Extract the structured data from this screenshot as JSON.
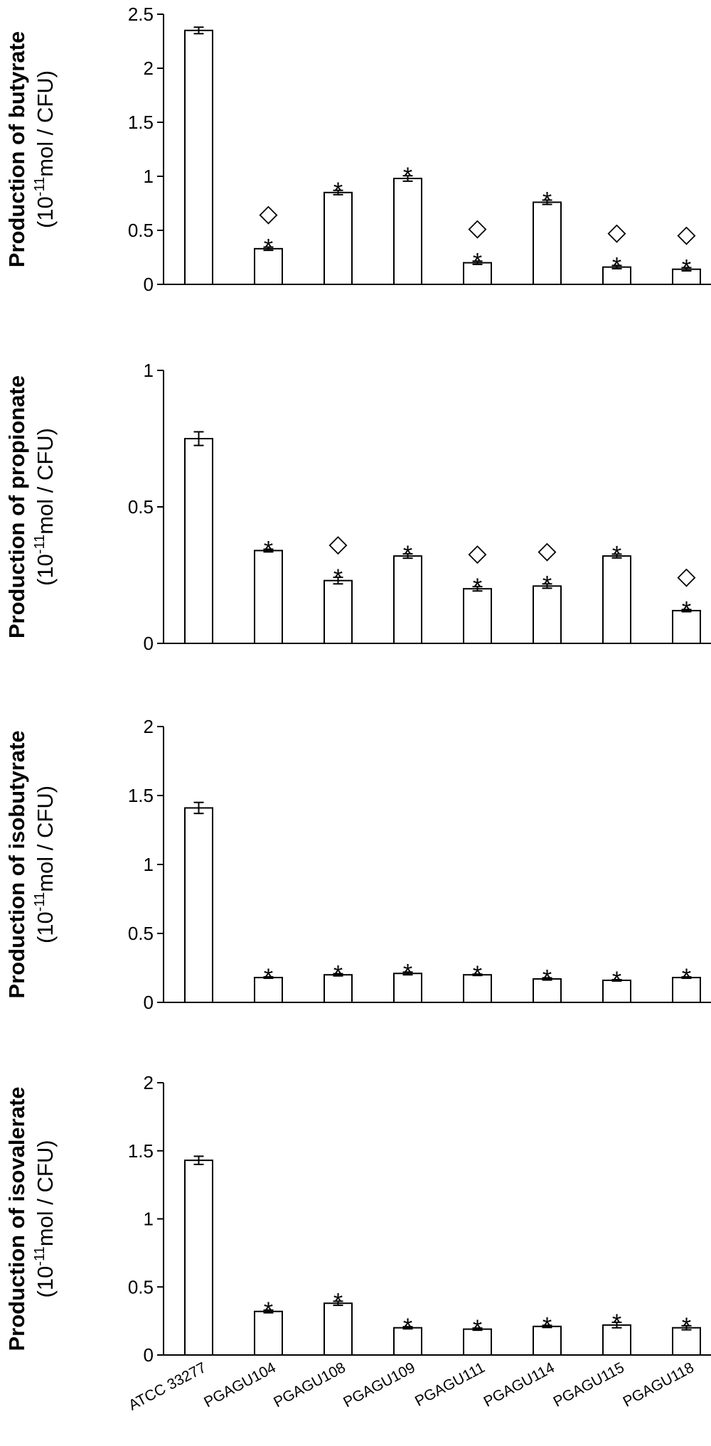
{
  "chart_data": {
    "type": "bar",
    "categories": [
      "ATCC 33277",
      "PGAGU104",
      "PGAGU108",
      "PGAGU109",
      "PGAGU111",
      "PGAGU114",
      "PGAGU115",
      "PGAGU118"
    ],
    "legend": "none",
    "grid": false,
    "markers": {
      "star": "*",
      "diamond": "◇"
    },
    "panels": [
      {
        "ylabel": {
          "line1": "Production of  butyrate",
          "pre": "(10",
          "sup": "-11",
          "post": "mol / CFU)"
        },
        "ylim": [
          0,
          2.5
        ],
        "ticks": [
          "0",
          "0.5",
          "1",
          "1.5",
          "2",
          "2.5"
        ],
        "values": [
          2.35,
          0.33,
          0.85,
          0.98,
          0.2,
          0.76,
          0.16,
          0.14
        ],
        "errors": [
          0.03,
          0.015,
          0.02,
          0.025,
          0.015,
          0.02,
          0.015,
          0.015
        ],
        "star": [
          false,
          true,
          true,
          true,
          true,
          true,
          true,
          true
        ],
        "diamond": [
          false,
          true,
          false,
          false,
          true,
          false,
          true,
          true
        ]
      },
      {
        "ylabel": {
          "line1": "Production of  propionate",
          "pre": "(10",
          "sup": "-11",
          "post": "mol / CFU)"
        },
        "ylim": [
          0,
          1
        ],
        "ticks": [
          "0",
          "0.5",
          "1"
        ],
        "values": [
          0.75,
          0.34,
          0.23,
          0.32,
          0.2,
          0.21,
          0.32,
          0.12
        ],
        "errors": [
          0.025,
          0.005,
          0.012,
          0.008,
          0.008,
          0.008,
          0.007,
          0.004
        ],
        "star": [
          false,
          true,
          true,
          true,
          true,
          true,
          true,
          true
        ],
        "diamond": [
          false,
          false,
          true,
          false,
          true,
          true,
          false,
          true
        ]
      },
      {
        "ylabel": {
          "line1": "Production of isobutyrate",
          "pre": "(10",
          "sup": "-11",
          "post": "mol / CFU)"
        },
        "ylim": [
          0,
          2
        ],
        "ticks": [
          "0",
          "0.5",
          "1",
          "1.5",
          "2"
        ],
        "values": [
          1.41,
          0.18,
          0.2,
          0.21,
          0.2,
          0.17,
          0.16,
          0.18
        ],
        "errors": [
          0.04,
          0.005,
          0.008,
          0.01,
          0.005,
          0.008,
          0.005,
          0.005
        ],
        "star": [
          false,
          true,
          true,
          true,
          true,
          true,
          true,
          true
        ],
        "diamond": [
          false,
          false,
          false,
          false,
          false,
          false,
          false,
          false
        ]
      },
      {
        "ylabel": {
          "line1": "Production of  isovalerate",
          "pre": "(10",
          "sup": "-11",
          "post": "mol / CFU)"
        },
        "ylim": [
          0,
          2
        ],
        "ticks": [
          "0",
          "0.5",
          "1",
          "1.5",
          "2"
        ],
        "values": [
          1.43,
          0.32,
          0.38,
          0.2,
          0.19,
          0.21,
          0.22,
          0.2
        ],
        "errors": [
          0.03,
          0.01,
          0.015,
          0.008,
          0.008,
          0.008,
          0.02,
          0.015
        ],
        "star": [
          false,
          true,
          true,
          true,
          true,
          true,
          true,
          true
        ],
        "diamond": [
          false,
          false,
          false,
          false,
          false,
          false,
          false,
          false
        ]
      }
    ]
  }
}
